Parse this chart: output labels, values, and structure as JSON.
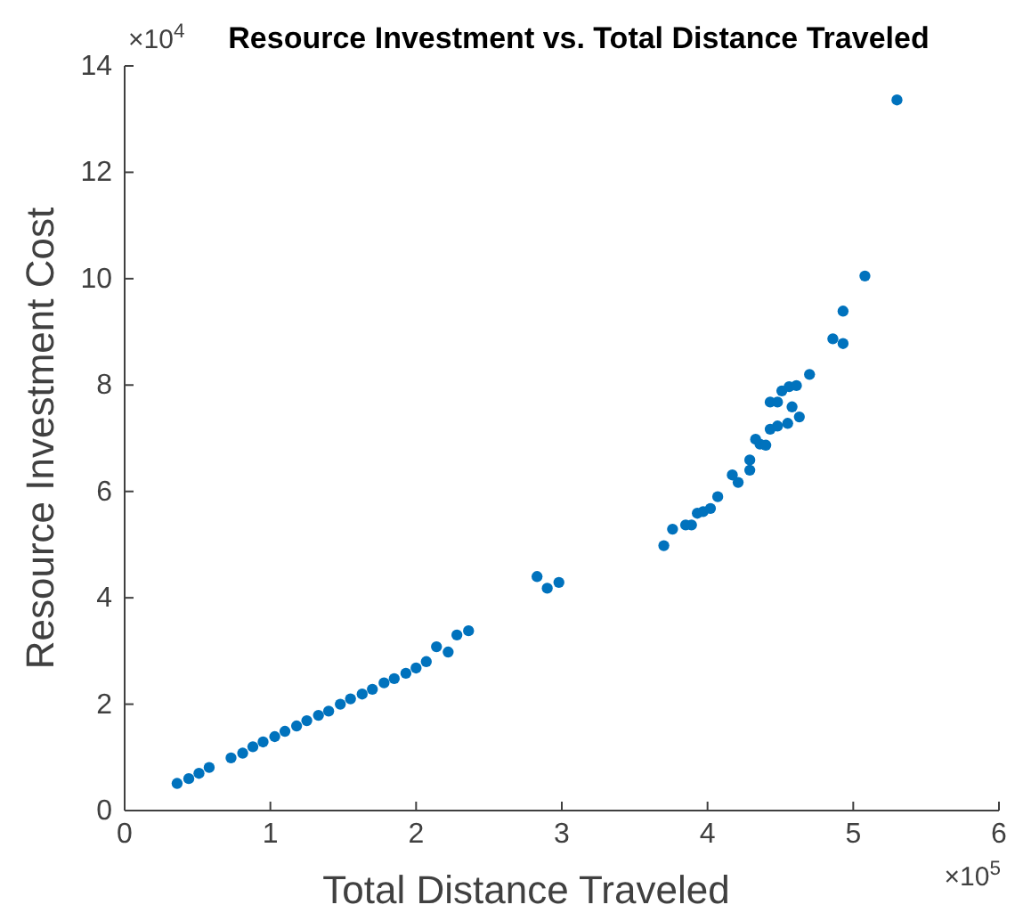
{
  "chart_data": {
    "type": "scatter",
    "title": "Resource Investment vs. Total Distance Traveled",
    "xlabel": "Total Distance Traveled",
    "ylabel": "Resource Investment Cost",
    "annotations": [
      "×10$^{5}$",
      "×10$^{4}$"
    ],
    "x": [
      0.36,
      0.44,
      0.51,
      0.58,
      0.73,
      0.81,
      0.88,
      0.95,
      1.03,
      1.1,
      1.18,
      1.25,
      1.33,
      1.4,
      1.48,
      1.55,
      1.63,
      1.7,
      1.78,
      1.85,
      1.93,
      2.0,
      2.07,
      2.14,
      2.22,
      2.28,
      2.36,
      2.83,
      2.9,
      2.98,
      3.7,
      3.76,
      3.85,
      3.89,
      3.93,
      3.97,
      4.02,
      4.07,
      4.17,
      4.21,
      4.29,
      4.29,
      4.33,
      4.36,
      4.4,
      4.43,
      4.48,
      4.55,
      4.63,
      4.58,
      4.43,
      4.48,
      4.51,
      4.56,
      4.61,
      4.7,
      4.86,
      4.93,
      4.93,
      5.08,
      5.3
    ],
    "series": [
      {
        "color": "#0072bd",
        "values": [
          0.51,
          0.6,
          0.7,
          0.81,
          0.99,
          1.08,
          1.2,
          1.29,
          1.39,
          1.49,
          1.59,
          1.69,
          1.79,
          1.87,
          2.0,
          2.1,
          2.19,
          2.28,
          2.4,
          2.48,
          2.58,
          2.68,
          2.8,
          3.08,
          2.98,
          3.3,
          3.38,
          4.4,
          4.18,
          4.29,
          4.98,
          5.29,
          5.37,
          5.37,
          5.59,
          5.62,
          5.68,
          5.9,
          6.31,
          6.17,
          6.4,
          6.59,
          6.98,
          6.89,
          6.87,
          7.17,
          7.23,
          7.28,
          7.4,
          7.59,
          7.68,
          7.68,
          7.89,
          7.97,
          7.99,
          8.2,
          8.87,
          8.78,
          9.39,
          10.05,
          13.36
        ]
      }
    ],
    "xlim": [
      0,
      6
    ],
    "xticks": [
      0,
      1,
      2,
      3,
      4,
      5,
      6
    ],
    "ylim": [
      0,
      14
    ],
    "yticks": [
      0,
      2,
      4,
      6,
      8,
      10,
      12,
      14
    ],
    "marker": "circle",
    "grid": false
  }
}
